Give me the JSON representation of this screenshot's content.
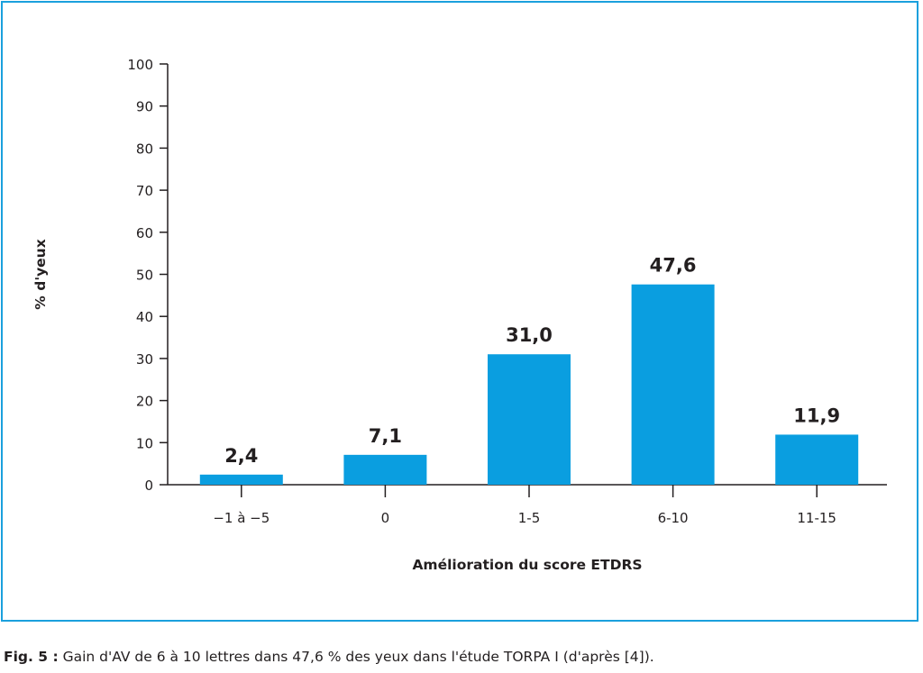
{
  "chart_data": {
    "type": "bar",
    "categories": [
      "−1 à −5",
      "0",
      "1-5",
      "6-10",
      "11-15"
    ],
    "values": [
      2.4,
      7.1,
      31.0,
      47.6,
      11.9
    ],
    "data_labels": [
      "2,4",
      "7,1",
      "31,0",
      "47,6",
      "11,9"
    ],
    "xlabel": "Amélioration du score ETDRS",
    "ylabel": "% d'yeux",
    "ylim": [
      0,
      100
    ],
    "yticks": [
      0,
      10,
      20,
      30,
      40,
      50,
      60,
      70,
      80,
      90,
      100
    ],
    "grid": false,
    "bar_color": "#0a9ee0",
    "frame_color": "#1ba0dd"
  },
  "caption": {
    "label": "Fig. 5 :",
    "text": " Gain d'AV de 6 à 10 lettres dans 47,6 % des yeux dans l'étude TORPA I (d'après [4])."
  }
}
